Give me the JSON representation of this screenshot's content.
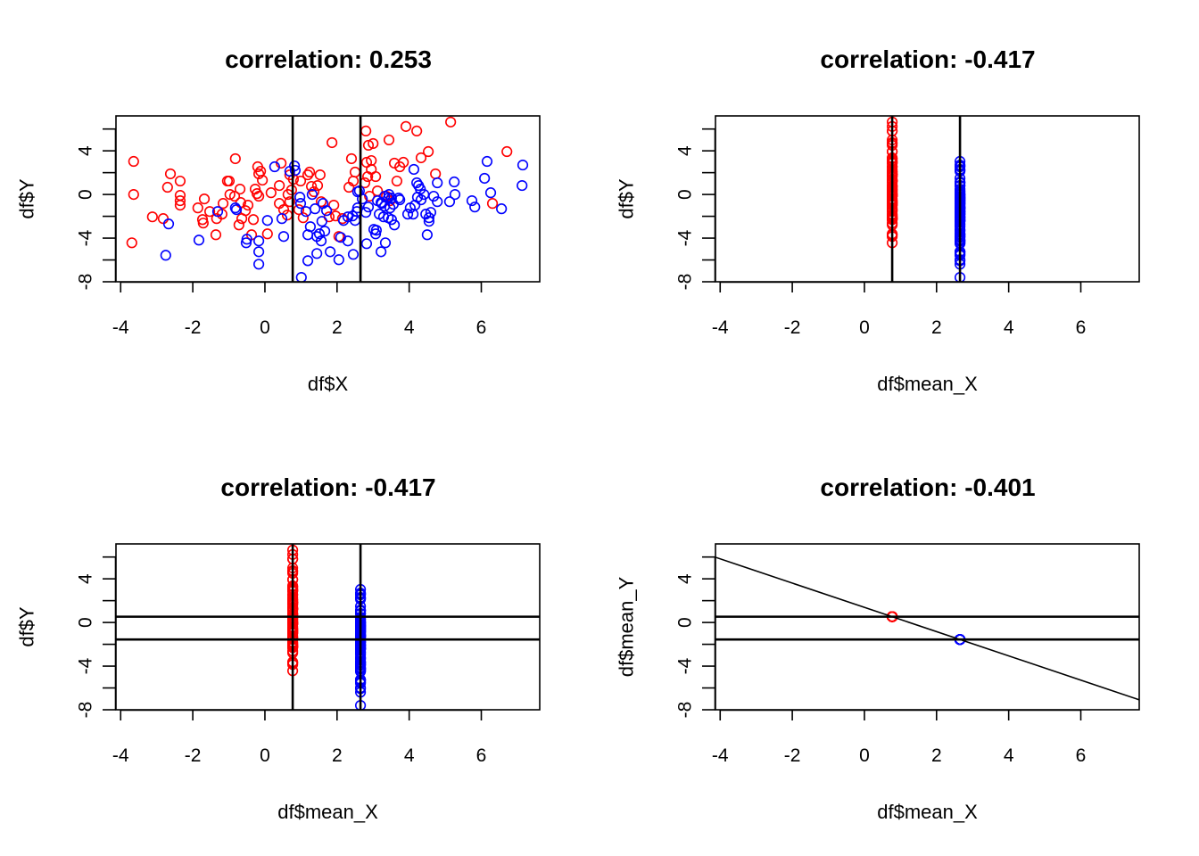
{
  "colors": {
    "group1": "#ff0000",
    "group2": "#0000ff",
    "axis": "#000000"
  },
  "chart_data": [
    {
      "type": "scatter",
      "title": "correlation: 0.253",
      "xlabel": "df$X",
      "ylabel": "df$Y",
      "xlim": [
        -4.13,
        7.62
      ],
      "ylim": [
        -8.0,
        7.2
      ],
      "xticks": [
        -4,
        -2,
        0,
        2,
        4,
        6
      ],
      "xtick_labels": [
        "-4",
        "-2",
        "0",
        "2",
        "4",
        "6"
      ],
      "yticks": [
        -8,
        -6,
        -4,
        -2,
        0,
        2,
        4,
        6
      ],
      "ytick_labels": [
        "-8",
        "",
        "-4",
        "",
        "0",
        "",
        "4",
        ""
      ],
      "x_source": "X",
      "y_source": "Y",
      "vlines": [
        "mean_X"
      ],
      "hlines": [],
      "regression_line": false
    },
    {
      "type": "scatter",
      "title": "correlation: -0.417",
      "xlabel": "df$mean_X",
      "ylabel": "df$Y",
      "xlim": [
        -4.13,
        7.62
      ],
      "ylim": [
        -8.0,
        7.2
      ],
      "xticks": [
        -4,
        -2,
        0,
        2,
        4,
        6
      ],
      "xtick_labels": [
        "-4",
        "-2",
        "0",
        "2",
        "4",
        "6"
      ],
      "yticks": [
        -8,
        -6,
        -4,
        -2,
        0,
        2,
        4,
        6
      ],
      "ytick_labels": [
        "-8",
        "",
        "-4",
        "",
        "0",
        "",
        "4",
        ""
      ],
      "x_source": "mean_X",
      "y_source": "Y",
      "vlines": [
        "mean_X"
      ],
      "hlines": [],
      "regression_line": false
    },
    {
      "type": "scatter",
      "title": "correlation: -0.417",
      "xlabel": "df$mean_X",
      "ylabel": "df$Y",
      "xlim": [
        -4.13,
        7.62
      ],
      "ylim": [
        -8.0,
        7.2
      ],
      "xticks": [
        -4,
        -2,
        0,
        2,
        4,
        6
      ],
      "xtick_labels": [
        "-4",
        "-2",
        "0",
        "2",
        "4",
        "6"
      ],
      "yticks": [
        -8,
        -6,
        -4,
        -2,
        0,
        2,
        4,
        6
      ],
      "ytick_labels": [
        "-8",
        "",
        "-4",
        "",
        "0",
        "",
        "4",
        ""
      ],
      "x_source": "mean_X",
      "y_source": "Y",
      "vlines": [
        "mean_X"
      ],
      "hlines": [
        "mean_Y"
      ],
      "regression_line": false
    },
    {
      "type": "scatter",
      "title": "correlation: -0.401",
      "xlabel": "df$mean_X",
      "ylabel": "df$mean_Y",
      "xlim": [
        -4.13,
        7.62
      ],
      "ylim": [
        -8.0,
        7.2
      ],
      "xticks": [
        -4,
        -2,
        0,
        2,
        4,
        6
      ],
      "xtick_labels": [
        "-4",
        "-2",
        "0",
        "2",
        "4",
        "6"
      ],
      "yticks": [
        -8,
        -6,
        -4,
        -2,
        0,
        2,
        4,
        6
      ],
      "ytick_labels": [
        "-8",
        "",
        "-4",
        "",
        "0",
        "",
        "4",
        ""
      ],
      "x_source": "mean_X",
      "y_source": "mean_Y",
      "vlines": [],
      "hlines": [
        "mean_Y"
      ],
      "regression_line": true
    }
  ],
  "groups": [
    {
      "name": "group1",
      "color": "#ff0000",
      "mean_X": 0.77,
      "mean_Y": 0.53,
      "X": [
        -3.64,
        -3.64,
        -3.69,
        -2.62,
        -2.7,
        -2.35,
        -2.35,
        -2.35,
        -2.35,
        -3.12,
        -2.82,
        -1.86,
        -1.68,
        -1.53,
        -1.73,
        -1.71,
        -1.34,
        -1.19,
        -1.16,
        -0.97,
        -0.84,
        -0.99,
        -1.04,
        -0.82,
        -1.36,
        -0.69,
        -0.67,
        -0.64,
        -0.72,
        -0.47,
        -0.54,
        -0.32,
        -0.17,
        -0.2,
        -0.12,
        -0.27,
        -0.22,
        -0.07,
        -0.17,
        0.17,
        0.4,
        0.4,
        0.52,
        0.45,
        0.69,
        0.79,
        0.74,
        0.64,
        0.69,
        0.62,
        0.07,
        -0.37,
        1.86,
        1.19,
        0.99,
        1.29,
        1.24,
        1.53,
        1.46,
        1.36,
        1.56,
        1.78,
        1.91,
        2.4,
        2.5,
        2.45,
        2.33,
        2.8,
        2.87,
        2.82,
        2.85,
        2.77,
        2.15,
        2.05,
        1.96,
        0.94,
        1.06,
        3.0,
        3.44,
        3.91,
        4.21,
        5.15,
        2.95,
        2.95,
        3.07,
        3.59,
        3.74,
        3.84,
        4.53,
        4.73,
        3.66,
        3.12,
        4.33,
        2.9,
        3.37,
        3.47,
        6.71,
        6.31
      ],
      "Y": [
        3.03,
        0.0,
        -4.43,
        1.89,
        0.66,
        1.23,
        -0.08,
        -0.57,
        -0.98,
        -2.05,
        -2.21,
        -1.23,
        -0.41,
        -1.56,
        -2.3,
        -2.62,
        -2.21,
        -1.8,
        -0.82,
        0.0,
        -0.16,
        1.23,
        1.23,
        3.28,
        -3.69,
        0.49,
        -0.74,
        -2.21,
        -2.79,
        -0.98,
        -1.48,
        -2.3,
        1.89,
        2.54,
        2.13,
        0.49,
        0.08,
        1.31,
        -0.16,
        0.16,
        0.82,
        -0.82,
        -1.39,
        2.87,
        1.8,
        1.39,
        0.41,
        0.0,
        -0.66,
        -1.89,
        -3.61,
        -3.69,
        4.75,
        1.8,
        1.23,
        0.74,
        2.05,
        1.8,
        0.82,
        0.25,
        -0.66,
        -2.05,
        -0.98,
        3.28,
        2.05,
        1.23,
        0.66,
        5.82,
        4.51,
        2.95,
        1.64,
        1.07,
        -2.21,
        -3.85,
        -1.97,
        -1.39,
        -2.13,
        4.67,
        5.0,
        6.23,
        5.82,
        6.64,
        3.11,
        2.3,
        1.64,
        2.87,
        2.54,
        2.95,
        3.93,
        1.89,
        1.23,
        0.33,
        3.36,
        -0.16,
        -0.16,
        -0.57,
        3.93,
        -0.82
      ]
    },
    {
      "name": "group2",
      "color": "#0000ff",
      "mean_X": 2.65,
      "mean_Y": -1.56,
      "X": [
        -2.67,
        -2.75,
        -1.83,
        -1.31,
        -0.82,
        -0.79,
        0.07,
        -0.5,
        -0.52,
        -0.17,
        -0.17,
        -0.17,
        0.47,
        0.52,
        0.27,
        0.69,
        0.82,
        0.97,
        0.99,
        1.01,
        0.84,
        1.31,
        1.39,
        1.61,
        1.71,
        1.51,
        1.58,
        1.66,
        1.44,
        1.56,
        1.19,
        1.44,
        1.81,
        2.05,
        2.1,
        2.3,
        2.45,
        2.18,
        2.3,
        2.43,
        2.55,
        2.5,
        2.57,
        2.62,
        2.7,
        2.57,
        2.8,
        1.26,
        1.19,
        1.14,
        4.13,
        4.21,
        4.26,
        4.31,
        3.32,
        3.42,
        3.24,
        3.32,
        3.71,
        3.51,
        3.47,
        3.56,
        3.44,
        3.22,
        3.12,
        3.74,
        4.03,
        4.16,
        4.23,
        4.33,
        4.41,
        4.78,
        4.68,
        4.78,
        5.12,
        5.27,
        2.87,
        3.17,
        3.29,
        3.51,
        3.59,
        3.96,
        4.11,
        4.46,
        4.6,
        4.55,
        4.55,
        3.02,
        3.07,
        3.34,
        2.82,
        3.22,
        4.5,
        3.42,
        3.09,
        6.16,
        6.09,
        6.26,
        7.15,
        7.13,
        5.25,
        5.74,
        5.82,
        6.56
      ],
      "Y": [
        -2.7,
        -5.57,
        -4.18,
        -1.56,
        -1.23,
        -1.39,
        -2.38,
        -4.1,
        -4.43,
        -4.26,
        -5.25,
        -6.39,
        -2.21,
        -3.85,
        2.54,
        2.13,
        2.62,
        -0.25,
        -0.82,
        -7.6,
        2.21,
        0.0,
        -1.31,
        -0.82,
        -1.48,
        -3.61,
        -2.46,
        -3.36,
        -3.85,
        -4.26,
        -6.07,
        -5.41,
        -5.25,
        -5.98,
        -3.93,
        -4.26,
        -5.49,
        -2.38,
        -2.05,
        -1.97,
        -1.56,
        -2.38,
        0.25,
        0.33,
        -0.41,
        -1.23,
        -1.64,
        -2.95,
        -3.69,
        -1.56,
        2.3,
        1.07,
        0.82,
        0.49,
        -0.16,
        -0.33,
        -0.82,
        -1.07,
        -0.33,
        -0.33,
        -1.23,
        -0.9,
        0.0,
        -0.74,
        -0.57,
        -0.49,
        -1.23,
        -0.98,
        -0.25,
        -0.49,
        0.0,
        1.07,
        -0.16,
        -0.66,
        -0.66,
        0.0,
        -1.15,
        -1.8,
        -2.05,
        -2.3,
        -2.79,
        -1.8,
        -1.8,
        -1.8,
        -1.64,
        -2.13,
        -2.46,
        -3.2,
        -3.61,
        -4.43,
        -4.51,
        -5.25,
        -3.69,
        -2.13,
        -3.28,
        3.03,
        1.48,
        0.16,
        2.7,
        0.82,
        1.15,
        -0.57,
        -1.15,
        -1.31
      ]
    }
  ]
}
